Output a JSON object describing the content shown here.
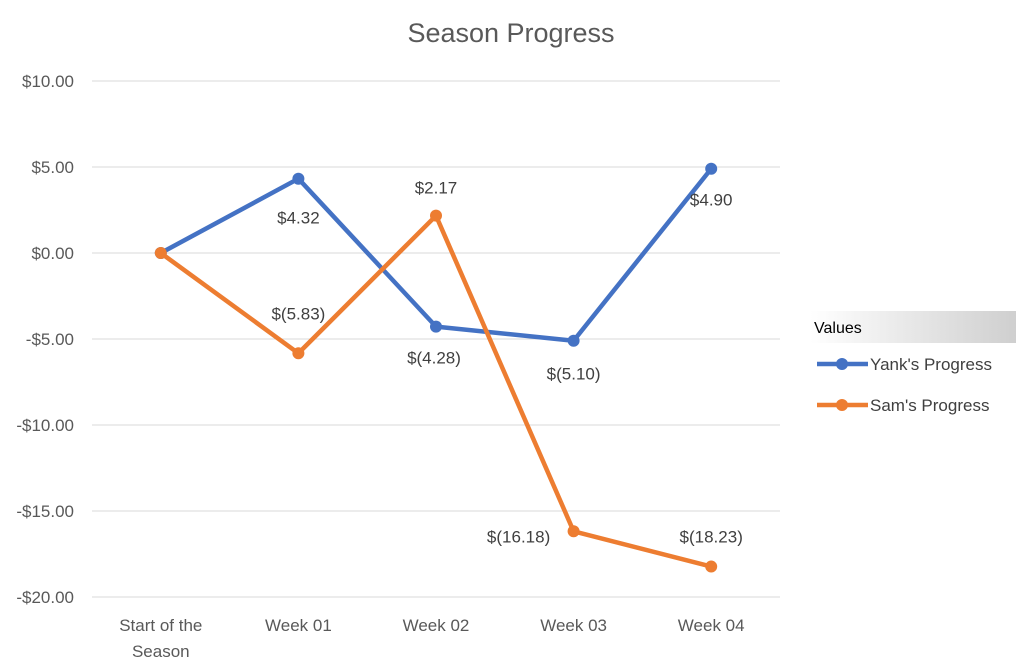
{
  "chart_data": {
    "type": "line",
    "title": "Season Progress",
    "categories": [
      "Start of the Season",
      "Week 01",
      "Week 02",
      "Week 03",
      "Week 04"
    ],
    "category_lines": [
      [
        "Start of the",
        "Season"
      ],
      [
        "Week 01"
      ],
      [
        "Week 02"
      ],
      [
        "Week 03"
      ],
      [
        "Week 04"
      ]
    ],
    "y_ticks": [
      10,
      5,
      0,
      -5,
      -10,
      -15,
      -20
    ],
    "y_tick_labels": [
      "$10.00",
      "$5.00",
      "$0.00",
      "-$5.00",
      "-$10.00",
      "-$15.00",
      "-$20.00"
    ],
    "ylim": [
      -20,
      10
    ],
    "grid": true,
    "legend": {
      "title": "Values",
      "position": "right"
    },
    "series": [
      {
        "name": "Yank's Progress",
        "color": "#4472C4",
        "values": [
          0,
          4.32,
          -4.28,
          -5.1,
          4.9
        ],
        "labels": [
          "",
          "$4.32",
          "$(4.28)",
          "$(5.10)",
          "$4.90"
        ]
      },
      {
        "name": "Sam's Progress",
        "color": "#ED7D31",
        "values": [
          0,
          -5.83,
          2.17,
          -16.18,
          -18.23
        ],
        "labels": [
          "",
          "$(5.83)",
          "$2.17",
          "$(16.18)",
          "$(18.23)"
        ]
      }
    ]
  }
}
